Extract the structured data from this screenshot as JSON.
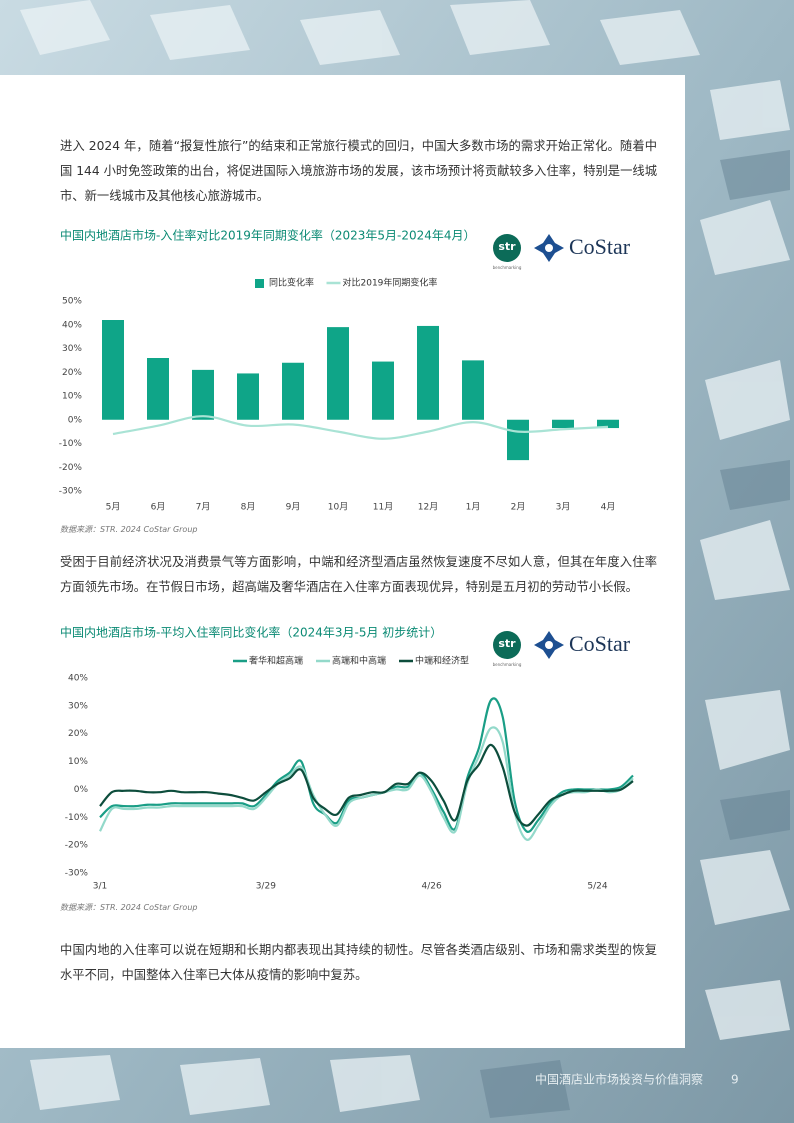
{
  "paragraphs": [
    "进入 2024 年，随着“报复性旅行”的结束和正常旅行模式的回归，中国大多数市场的需求开始正常化。随着中国 144 小时免签政策的出台，将促进国际入境旅游市场的发展，该市场预计将贡献较多入住率，特别是一线城市、新一线城市及其他核心旅游城市。",
    "受困于目前经济状况及消费景气等方面影响，中端和经济型酒店虽然恢复速度不尽如人意，但其在年度入住率方面领先市场。在节假日市场，超高端及奢华酒店在入住率方面表现优异，特别是五月初的劳动节小长假。",
    "中国内地的入住率可以说在短期和长期内都表现出其持续的韧性。尽管各类酒店级别、市场和需求类型的恢复水平不同，中国整体入住率已大体从疫情的影响中复苏。"
  ],
  "sources": [
    "数据来源：STR. 2024 CoStar Group",
    "数据来源：STR. 2024 CoStar Group"
  ],
  "logos": {
    "str": "str",
    "benchmarking": "benchmarking",
    "costar": "CoStar"
  },
  "footer": {
    "title": "中国酒店业市场投资与价值洞察",
    "page": "9"
  },
  "chart_data": [
    {
      "type": "bar",
      "title": "中国内地酒店市场-入住率对比2019年同期变化率（2023年5月-2024年4月）",
      "categories": [
        "5月",
        "6月",
        "7月",
        "8月",
        "9月",
        "10月",
        "11月",
        "12月",
        "1月",
        "2月",
        "3月",
        "4月"
      ],
      "series": [
        {
          "name": "同比变化率",
          "type": "bar",
          "color": "#0fa588",
          "values": [
            42,
            26,
            21,
            19.5,
            24,
            39,
            24.5,
            39.5,
            25,
            -17,
            -3.5,
            -3.5
          ]
        },
        {
          "name": "对比2019年同期变化率",
          "type": "line",
          "color": "#a9e3d5",
          "values": [
            -6,
            -2.5,
            1.5,
            -2.5,
            -2,
            -5,
            -8,
            -5,
            -1,
            -5,
            -4,
            -3
          ]
        }
      ],
      "ylim": [
        -30,
        50
      ],
      "yticks": [
        {
          "value": -30,
          "label": "-30%"
        },
        {
          "value": -20,
          "label": "-20%"
        },
        {
          "value": -10,
          "label": "-10%"
        },
        {
          "value": 0,
          "label": "0%"
        },
        {
          "value": 10,
          "label": "10%"
        },
        {
          "value": 20,
          "label": "20%"
        },
        {
          "value": 30,
          "label": "30%"
        },
        {
          "value": 40,
          "label": "40%"
        },
        {
          "value": 50,
          "label": "50%"
        }
      ]
    },
    {
      "type": "line",
      "title": "中国内地酒店市场-平均入住率同比变化率（2024年3月-5月 初步统计）",
      "categories": [
        "3/1",
        null,
        null,
        null,
        null,
        null,
        null,
        null,
        null,
        null,
        null,
        null,
        null,
        null,
        "3/29",
        null,
        null,
        null,
        null,
        null,
        null,
        null,
        null,
        null,
        null,
        null,
        null,
        null,
        "4/26",
        null,
        null,
        null,
        null,
        null,
        null,
        null,
        null,
        null,
        null,
        null,
        null,
        null,
        "5/24",
        null,
        null,
        null
      ],
      "series": [
        {
          "name": "奢华和超高端",
          "color": "#1a9e86",
          "values": [
            -10,
            -6,
            -6,
            -6,
            -5.5,
            -5.5,
            -5,
            -5,
            -5,
            -5,
            -5,
            -5,
            -5,
            -6,
            -2,
            3,
            6,
            10,
            -5,
            -9,
            -12,
            -4,
            -3,
            -2,
            -1,
            1,
            1,
            6,
            0,
            -8,
            -14,
            4,
            15,
            32,
            26,
            -4,
            -15,
            -11,
            -5,
            -1,
            0,
            0,
            0,
            0,
            1,
            5
          ]
        },
        {
          "name": "高端和中高端",
          "color": "#93d9ca",
          "values": [
            -15,
            -7,
            -7,
            -7,
            -6.5,
            -6.5,
            -6,
            -6,
            -6,
            -6,
            -6,
            -6,
            -6,
            -7,
            -3,
            2,
            5,
            8,
            -2,
            -9,
            -13,
            -5,
            -3,
            -2,
            -1,
            0,
            0,
            5,
            -1,
            -10,
            -15,
            2,
            12,
            22,
            17,
            -8,
            -18,
            -13,
            -6,
            -2,
            -1,
            -1,
            0,
            -1,
            0,
            4
          ]
        },
        {
          "name": "中端和经济型",
          "color": "#0d4d3c",
          "values": [
            -6,
            -1,
            -0.5,
            -0.5,
            -1,
            -1,
            -0.5,
            -1,
            -1,
            -1,
            -1.5,
            -2,
            -3,
            -4,
            -1,
            2,
            4,
            7,
            -3,
            -7,
            -9,
            -3,
            -2,
            -1,
            -1,
            2,
            2,
            6,
            3,
            -4,
            -11,
            3,
            9,
            16,
            8,
            -8,
            -13,
            -9,
            -4,
            -2,
            -0.5,
            -0.5,
            -0.5,
            -0.5,
            0,
            3
          ]
        }
      ],
      "ylim": [
        -30,
        40
      ],
      "yticks": [
        {
          "value": -30,
          "label": "-30%"
        },
        {
          "value": -20,
          "label": "-20%"
        },
        {
          "value": -10,
          "label": "-10%"
        },
        {
          "value": 0,
          "label": "0%"
        },
        {
          "value": 10,
          "label": "10%"
        },
        {
          "value": 20,
          "label": "20%"
        },
        {
          "value": 30,
          "label": "30%"
        },
        {
          "value": 40,
          "label": "40%"
        }
      ]
    }
  ]
}
